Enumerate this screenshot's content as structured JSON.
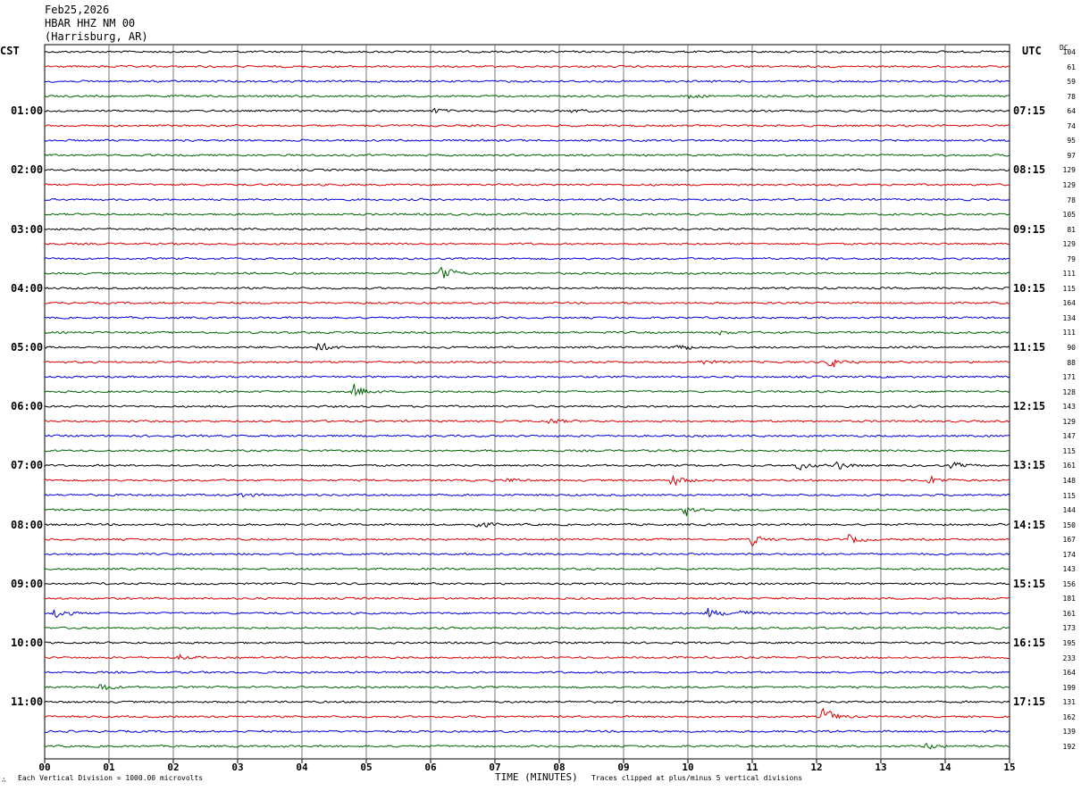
{
  "header": {
    "date": "Feb25,2026",
    "station": "HBAR HHZ NM 00",
    "location": "(Harrisburg, AR)"
  },
  "left_axis_label": "CST",
  "right_axis_label": "UTC",
  "dc_label": "DC",
  "left_hour_labels": [
    "01:00",
    "02:00",
    "03:00",
    "04:00",
    "05:00",
    "06:00",
    "07:00",
    "08:00",
    "09:00",
    "10:00",
    "11:00"
  ],
  "right_hour_labels": [
    "07:15",
    "08:15",
    "09:15",
    "10:15",
    "11:15",
    "12:15",
    "13:15",
    "14:15",
    "15:15",
    "16:15",
    "17:15"
  ],
  "dc_values": [
    "104",
    "61",
    "59",
    "78",
    "64",
    "74",
    "95",
    "97",
    "129",
    "129",
    "78",
    "105",
    "81",
    "129",
    "79",
    "111",
    "115",
    "164",
    "134",
    "111",
    "90",
    "88",
    "171",
    "128",
    "143",
    "129",
    "147",
    "115",
    "161",
    "148",
    "115",
    "144",
    "150",
    "167",
    "174",
    "143",
    "156",
    "181",
    "161",
    "173",
    "195",
    "233",
    "164",
    "199",
    "131",
    "162",
    "139",
    "192"
  ],
  "footer": {
    "left": "Each Vertical Division = 1000.00 microvolts",
    "center": "TIME (MINUTES)",
    "right": "Traces clipped at plus/minus 5 vertical divisions",
    "logo": "∴"
  },
  "chart_data": {
    "type": "line",
    "title": "HBAR HHZ NM 00",
    "xlabel": "TIME (MINUTES)",
    "ylabel": "",
    "xlim": [
      0,
      15
    ],
    "x_ticks": [
      "00",
      "01",
      "02",
      "03",
      "04",
      "05",
      "06",
      "07",
      "08",
      "09",
      "10",
      "11",
      "12",
      "13",
      "14",
      "15"
    ],
    "rows": 48,
    "minutes_per_row": 15,
    "trace_colors": [
      "#000000",
      "#dd0000",
      "#0000dd",
      "#006400"
    ],
    "events": [
      {
        "row": 3,
        "minute": 10.0,
        "amp": 0.6
      },
      {
        "row": 4,
        "minute": 6.05,
        "amp": 0.5
      },
      {
        "row": 4,
        "minute": 8.2,
        "amp": 0.4
      },
      {
        "row": 15,
        "minute": 6.15,
        "amp": 2.4
      },
      {
        "row": 19,
        "minute": 10.5,
        "amp": 0.4
      },
      {
        "row": 20,
        "minute": 4.25,
        "amp": 1.2
      },
      {
        "row": 20,
        "minute": 9.8,
        "amp": 1.1
      },
      {
        "row": 21,
        "minute": 10.2,
        "amp": 0.5
      },
      {
        "row": 21,
        "minute": 12.2,
        "amp": 1.5
      },
      {
        "row": 23,
        "minute": 4.8,
        "amp": 1.6
      },
      {
        "row": 25,
        "minute": 7.85,
        "amp": 0.7
      },
      {
        "row": 28,
        "minute": 11.7,
        "amp": 1.0
      },
      {
        "row": 28,
        "minute": 12.3,
        "amp": 1.0
      },
      {
        "row": 28,
        "minute": 14.1,
        "amp": 0.7
      },
      {
        "row": 29,
        "minute": 9.75,
        "amp": 1.3
      },
      {
        "row": 29,
        "minute": 13.75,
        "amp": 1.0
      },
      {
        "row": 29,
        "minute": 7.2,
        "amp": 0.6
      },
      {
        "row": 30,
        "minute": 3.05,
        "amp": 0.6
      },
      {
        "row": 31,
        "minute": 9.95,
        "amp": 1.6
      },
      {
        "row": 32,
        "minute": 6.7,
        "amp": 1.0
      },
      {
        "row": 33,
        "minute": 11.0,
        "amp": 1.1
      },
      {
        "row": 33,
        "minute": 12.5,
        "amp": 1.0
      },
      {
        "row": 38,
        "minute": 0.15,
        "amp": 1.2
      },
      {
        "row": 38,
        "minute": 10.3,
        "amp": 1.2
      },
      {
        "row": 38,
        "minute": 10.8,
        "amp": 0.8
      },
      {
        "row": 41,
        "minute": 2.1,
        "amp": 0.6
      },
      {
        "row": 43,
        "minute": 0.85,
        "amp": 1.0
      },
      {
        "row": 45,
        "minute": 12.1,
        "amp": 2.0
      },
      {
        "row": 47,
        "minute": 13.7,
        "amp": 0.7
      }
    ]
  }
}
